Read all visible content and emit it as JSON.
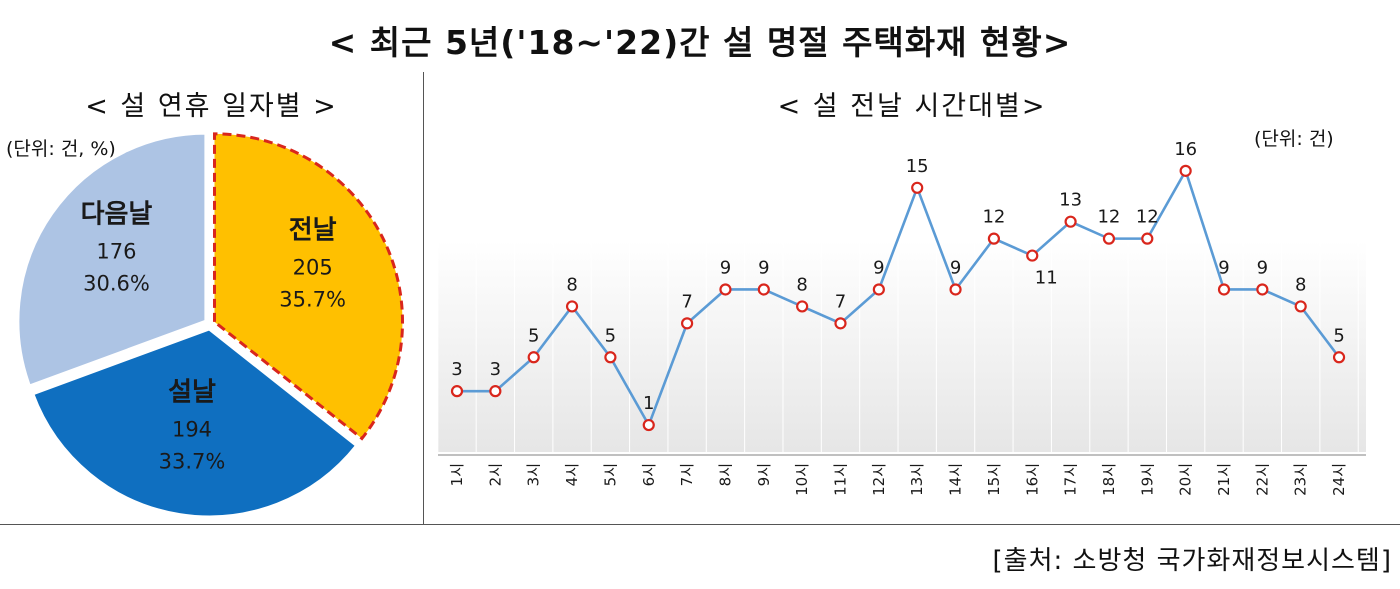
{
  "title": "< 최근  5년('18~'22)간  설  명절  주택화재  현황>",
  "source": "[출처:  소방청  국가화재정보시스템]",
  "colors": {
    "seol_eve": "#ffc000",
    "seol_day": "#0f6fc0",
    "next_day": "#adc4e4",
    "eve_border": "#d9261c",
    "line": "#5b9bd5",
    "marker_stroke": "#d9261c"
  },
  "chart_data": [
    {
      "type": "pie",
      "title": "< 설  연휴  일자별  >",
      "unit": "(단위: 건, %)",
      "slices": [
        {
          "label": "전날",
          "value": 205,
          "percent": "35.7%"
        },
        {
          "label": "설날",
          "value": 194,
          "percent": "33.7%"
        },
        {
          "label": "다음날",
          "value": 176,
          "percent": "30.6%"
        }
      ]
    },
    {
      "type": "line",
      "title": "< 설  전날  시간대별>",
      "unit": "(단위: 건)",
      "categories": [
        "1시",
        "2시",
        "3시",
        "4시",
        "5시",
        "6시",
        "7시",
        "8시",
        "9시",
        "10시",
        "11시",
        "12시",
        "13시",
        "14시",
        "15시",
        "16시",
        "17시",
        "18시",
        "19시",
        "20시",
        "21시",
        "22시",
        "23시",
        "24시"
      ],
      "values": [
        3,
        3,
        5,
        8,
        5,
        1,
        7,
        9,
        9,
        8,
        7,
        9,
        15,
        9,
        12,
        11,
        13,
        12,
        12,
        16,
        9,
        9,
        8,
        5
      ],
      "ylim": [
        0,
        19
      ]
    }
  ]
}
